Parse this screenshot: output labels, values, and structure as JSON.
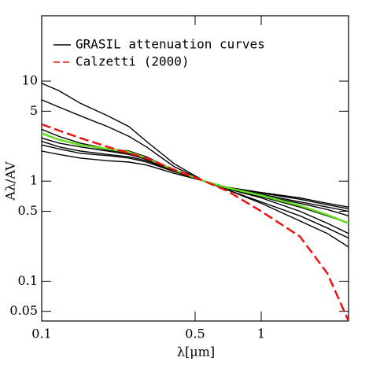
{
  "chart_data": {
    "type": "line",
    "legend_labels_position": "upper left",
    "x_label": "λ[μm]",
    "y_label": "Aλ/AV",
    "xscale": "log",
    "yscale": "log",
    "xlim": [
      0.1,
      2.5
    ],
    "ylim": [
      0.04,
      45
    ],
    "xticks": [
      0.1,
      0.5,
      1
    ],
    "yticks": [
      0.05,
      0.1,
      0.5,
      1,
      5,
      10
    ],
    "x": [
      0.1,
      0.12,
      0.15,
      0.2,
      0.25,
      0.3,
      0.4,
      0.55,
      0.7,
      1,
      1.5,
      2,
      2.5
    ],
    "series": [
      {
        "name": "GRASIL attenuation curves",
        "color": "#000000",
        "dash": "solid",
        "values": [
          9.5,
          8,
          6,
          4.5,
          3.5,
          2.5,
          1.5,
          1,
          0.82,
          0.6,
          0.4,
          0.3,
          0.22
        ]
      },
      {
        "color": "#000000",
        "dash": "solid",
        "values": [
          6.5,
          5.5,
          4.5,
          3.5,
          2.8,
          2.2,
          1.4,
          1,
          0.82,
          0.62,
          0.45,
          0.34,
          0.27
        ]
      },
      {
        "color": "#000000",
        "dash": "solid",
        "values": [
          3.3,
          2.8,
          2.4,
          2.1,
          2,
          1.75,
          1.3,
          1,
          0.85,
          0.72,
          0.6,
          0.52,
          0.45
        ]
      },
      {
        "color": "#000000",
        "dash": "solid",
        "values": [
          2.7,
          2.4,
          2.2,
          2.0,
          1.85,
          1.65,
          1.28,
          1,
          0.86,
          0.74,
          0.62,
          0.55,
          0.5
        ]
      },
      {
        "color": "#000000",
        "dash": "solid",
        "values": [
          2.3,
          2.1,
          1.9,
          1.8,
          1.7,
          1.55,
          1.25,
          1,
          0.87,
          0.76,
          0.66,
          0.58,
          0.53
        ]
      },
      {
        "color": "#000000",
        "dash": "solid",
        "values": [
          2.0,
          1.85,
          1.7,
          1.6,
          1.55,
          1.45,
          1.2,
          1,
          0.87,
          0.77,
          0.68,
          0.6,
          0.55
        ]
      },
      {
        "color": "#000000",
        "dash": "solid",
        "values": [
          3.0,
          2.6,
          2.3,
          2.05,
          1.9,
          1.7,
          1.3,
          1,
          0.84,
          0.7,
          0.55,
          0.45,
          0.38
        ]
      },
      {
        "color": "#000000",
        "dash": "solid",
        "values": [
          2.5,
          2.2,
          2.0,
          1.85,
          1.75,
          1.6,
          1.27,
          1,
          0.84,
          0.68,
          0.5,
          0.38,
          0.3
        ]
      },
      {
        "color": "#66dd22",
        "dash": "solid",
        "values": [
          3.0,
          2.6,
          2.3,
          2.1,
          1.95,
          1.7,
          1.3,
          1,
          0.86,
          0.72,
          0.57,
          0.46,
          0.38
        ]
      },
      {
        "name": "Calzetti (2000)",
        "color": "#ee1111",
        "dash": "dashed",
        "values": [
          3.7,
          3.2,
          2.7,
          2.2,
          1.9,
          1.7,
          1.3,
          1,
          0.8,
          0.5,
          0.28,
          0.12,
          0.04
        ]
      }
    ]
  }
}
